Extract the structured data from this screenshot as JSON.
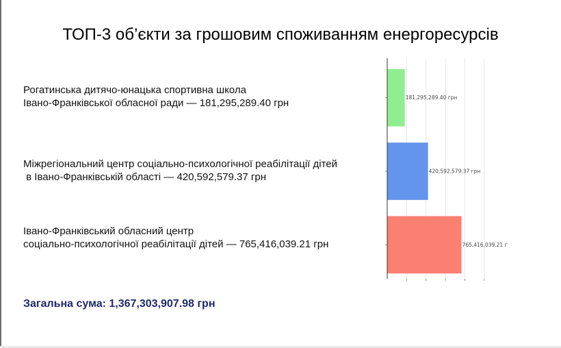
{
  "title": "ТОП-3 об’єкти за грошовим споживанням енергоресурсів",
  "items": [
    {
      "line1": "Рогатинська дитячо-юнацька спортивна школа",
      "line2": "Івано-Франківської обласної ради — 181,295,289.40 грн"
    },
    {
      "line1": "Міжрегіональний центр соціально-психологічної реабілітації дітей",
      "line2": " в Івано-Франківській області — 420,592,579.37 грн"
    },
    {
      "line1": "Івано-Франківський обласний центр",
      "line2": "соціально-психологічної реабілітації дітей — 765,416,039.21 грн"
    }
  ],
  "total": "Загальна сума: 1,367,303,907.98 грн",
  "chart_data": {
    "type": "bar",
    "orientation": "horizontal",
    "categories": [
      "Рогатинська дитячо-юнацька спортивна школа Івано-Франківської обласної ради",
      "Міжрегіональний центр соціально-психологічної реабілітації дітей в Івано-Франківській області",
      "Івано-Франківський обласний центр соціально-психологічної реабілітації дітей"
    ],
    "values": [
      181295289.4,
      420592579.37,
      765416039.21
    ],
    "value_labels": [
      "181,295,289.40 грн",
      "420,592,579.37 грн",
      "765,416,039.21 г"
    ],
    "colors": [
      "#90ee90",
      "#6495ed",
      "#fa8072"
    ],
    "xlim": [
      0,
      1100000000
    ],
    "grid": true
  }
}
